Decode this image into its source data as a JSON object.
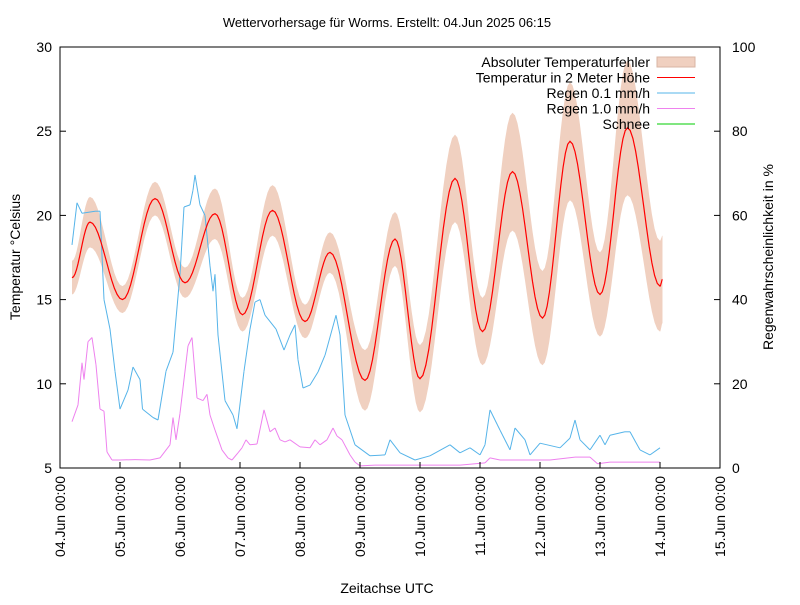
{
  "chart_data": {
    "type": "line",
    "title": "Wettervorhersage für Worms. Erstellt: 04.Jun 2025 06:15",
    "xlabel": "Zeitachse UTC",
    "ylabel": "Temperatur °Celsius",
    "y2label": "Regenwahrscheinlichkeit in %",
    "xlim_hours": [
      0,
      264
    ],
    "ylim": [
      5,
      30
    ],
    "y2lim": [
      0,
      100
    ],
    "yticks": [
      "5",
      "10",
      "15",
      "20",
      "25",
      "30"
    ],
    "y2ticks": [
      "0",
      "20",
      "40",
      "60",
      "80",
      "100"
    ],
    "xticks": [
      "04.Jun 00:00",
      "05.Jun 00:00",
      "06.Jun 00:00",
      "07.Jun 00:00",
      "08.Jun 00:00",
      "09.Jun 00:00",
      "10.Jun 00:00",
      "11.Jun 00:00",
      "12.Jun 00:00",
      "13.Jun 00:00",
      "14.Jun 00:00",
      "15.Jun 00:00"
    ],
    "grid": false,
    "legend_position": "top-right",
    "legend": [
      {
        "label": "Absoluter Temperaturfehler",
        "color": "#f0d0c0",
        "kind": "band"
      },
      {
        "label": "Temperatur in 2 Meter Höhe",
        "color": "#ff0000",
        "kind": "line"
      },
      {
        "label": "Regen 0.1 mm/h",
        "color": "#56b4e9",
        "kind": "line"
      },
      {
        "label": "Regen 1.0 mm/h",
        "color": "#ee82ee",
        "kind": "line"
      },
      {
        "label": "Schnee",
        "color": "#00cc00",
        "kind": "line"
      }
    ],
    "temperature": {
      "note_units": "hours since 04.Jun 00:00 UTC, °C, ± absolute error °C",
      "points": [
        [
          4.8,
          16.3,
          1.0
        ],
        [
          12,
          19.6,
          1.5
        ],
        [
          25,
          15.0,
          0.8
        ],
        [
          38,
          21.0,
          1.0
        ],
        [
          50,
          16.0,
          0.9
        ],
        [
          62,
          20.1,
          1.5
        ],
        [
          73,
          14.1,
          1.0
        ],
        [
          85,
          20.3,
          1.5
        ],
        [
          98,
          13.7,
          1.0
        ],
        [
          108,
          17.8,
          1.2
        ],
        [
          122,
          10.2,
          1.8
        ],
        [
          134,
          18.6,
          1.6
        ],
        [
          144,
          10.3,
          2.0
        ],
        [
          158,
          22.2,
          2.6
        ],
        [
          169,
          13.1,
          2.0
        ],
        [
          181,
          22.6,
          3.5
        ],
        [
          193,
          13.9,
          2.8
        ],
        [
          204,
          24.4,
          3.5
        ],
        [
          216,
          15.3,
          2.5
        ],
        [
          227,
          25.2,
          4.0
        ],
        [
          240,
          15.8,
          2.7
        ],
        [
          241,
          16.2,
          2.6
        ]
      ]
    },
    "rain_01": [
      [
        4.8,
        53
      ],
      [
        6.8,
        63
      ],
      [
        8.8,
        60.5
      ],
      [
        14,
        61
      ],
      [
        16,
        61
      ],
      [
        17.6,
        40
      ],
      [
        20,
        33
      ],
      [
        22,
        23
      ],
      [
        24,
        14
      ],
      [
        27.2,
        18.5
      ],
      [
        29.2,
        24
      ],
      [
        32,
        21
      ],
      [
        33,
        14
      ],
      [
        37.2,
        12
      ],
      [
        39.2,
        11.4
      ],
      [
        42.4,
        23
      ],
      [
        45.2,
        27.5
      ],
      [
        48,
        46
      ],
      [
        49.6,
        62
      ],
      [
        52,
        62.5
      ],
      [
        53.2,
        66
      ],
      [
        54,
        69.6
      ],
      [
        56,
        62.5
      ],
      [
        58,
        60
      ],
      [
        60,
        48
      ],
      [
        61.2,
        42
      ],
      [
        62,
        46
      ],
      [
        63.2,
        31.6
      ],
      [
        66,
        16
      ],
      [
        69.2,
        12.6
      ],
      [
        70.8,
        9.3
      ],
      [
        73.6,
        23
      ],
      [
        76,
        33
      ],
      [
        78,
        39.4
      ],
      [
        80,
        40
      ],
      [
        82,
        36.3
      ],
      [
        86.4,
        33
      ],
      [
        89.6,
        28
      ],
      [
        92,
        31.6
      ],
      [
        94,
        34
      ],
      [
        95.2,
        25.7
      ],
      [
        97.2,
        19
      ],
      [
        100,
        19.7
      ],
      [
        103.2,
        22.8
      ],
      [
        106,
        26.8
      ],
      [
        110.4,
        36.3
      ],
      [
        112,
        31.6
      ],
      [
        114,
        12.6
      ],
      [
        118,
        5.5
      ],
      [
        124,
        2.9
      ],
      [
        130,
        3.1
      ],
      [
        132,
        6.7
      ],
      [
        136,
        3.6
      ],
      [
        142,
        1.9
      ],
      [
        148,
        2.9
      ],
      [
        156,
        5.5
      ],
      [
        160,
        3.6
      ],
      [
        164,
        4.8
      ],
      [
        168,
        3.1
      ],
      [
        170,
        5.5
      ],
      [
        172,
        13.8
      ],
      [
        176,
        9
      ],
      [
        180,
        4.3
      ],
      [
        182,
        9.5
      ],
      [
        186,
        6.7
      ],
      [
        188,
        3.1
      ],
      [
        192,
        5.9
      ],
      [
        200,
        4.8
      ],
      [
        204,
        7.1
      ],
      [
        206,
        11.4
      ],
      [
        208,
        6.7
      ],
      [
        212,
        4.3
      ],
      [
        216,
        7.8
      ],
      [
        218,
        5.5
      ],
      [
        220,
        7.8
      ],
      [
        226,
        8.6
      ],
      [
        228,
        8.6
      ],
      [
        232,
        4.3
      ],
      [
        236,
        3.1
      ],
      [
        240,
        4.8
      ]
    ],
    "rain_10": [
      [
        4.8,
        11
      ],
      [
        7.2,
        15
      ],
      [
        8.8,
        25
      ],
      [
        9.6,
        21
      ],
      [
        11.2,
        30
      ],
      [
        12.8,
        31
      ],
      [
        14.4,
        24.5
      ],
      [
        16,
        14
      ],
      [
        17.6,
        13.5
      ],
      [
        18.8,
        3.8
      ],
      [
        20.8,
        1.9
      ],
      [
        24,
        1.9
      ],
      [
        30,
        2
      ],
      [
        36,
        1.9
      ],
      [
        40,
        2.4
      ],
      [
        44,
        5.5
      ],
      [
        45.2,
        12
      ],
      [
        46.4,
        6.7
      ],
      [
        48,
        13
      ],
      [
        51.2,
        29
      ],
      [
        52.8,
        31
      ],
      [
        54.8,
        16.6
      ],
      [
        57.2,
        16
      ],
      [
        58.8,
        17.5
      ],
      [
        60,
        12.6
      ],
      [
        62,
        9
      ],
      [
        64.8,
        4.3
      ],
      [
        67.2,
        2.4
      ],
      [
        68.8,
        1.9
      ],
      [
        71.2,
        3.6
      ],
      [
        72.8,
        4.8
      ],
      [
        74.4,
        6.7
      ],
      [
        76,
        5.5
      ],
      [
        78.8,
        5.7
      ],
      [
        81.6,
        13.8
      ],
      [
        84,
        8.6
      ],
      [
        86,
        9.5
      ],
      [
        88,
        6.7
      ],
      [
        90,
        6.2
      ],
      [
        92,
        6.7
      ],
      [
        96,
        5
      ],
      [
        100,
        4.8
      ],
      [
        102,
        6.7
      ],
      [
        104,
        5.5
      ],
      [
        106.8,
        6.7
      ],
      [
        109.2,
        9.5
      ],
      [
        110.8,
        7.6
      ],
      [
        112.8,
        6.7
      ],
      [
        116,
        3.1
      ],
      [
        118,
        1.4
      ],
      [
        120,
        0.5
      ],
      [
        126,
        0.7
      ],
      [
        140,
        0.7
      ],
      [
        160,
        0.7
      ],
      [
        170,
        1.2
      ],
      [
        172,
        2.4
      ],
      [
        176,
        1.9
      ],
      [
        196,
        1.9
      ],
      [
        206,
        2.6
      ],
      [
        212,
        2.6
      ],
      [
        215,
        1
      ],
      [
        220,
        1.4
      ],
      [
        240,
        1.4
      ]
    ],
    "snow": []
  }
}
